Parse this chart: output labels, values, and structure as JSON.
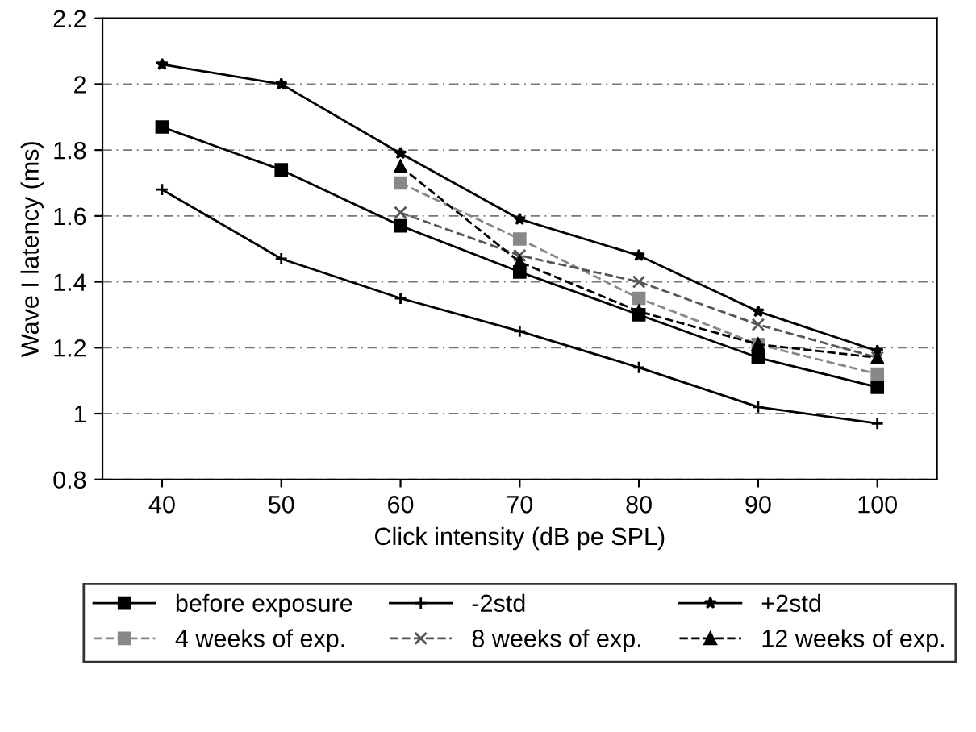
{
  "chart_data": {
    "type": "line",
    "xlabel": "Click intensity (dB pe SPL)",
    "ylabel": "Wave I latency (ms)",
    "x": [
      40,
      50,
      60,
      70,
      80,
      90,
      100
    ],
    "xlim": [
      35,
      105
    ],
    "xticks": [
      40,
      50,
      60,
      70,
      80,
      90,
      100
    ],
    "ylim": [
      0.8,
      2.2
    ],
    "yticks": [
      0.8,
      1,
      1.2,
      1.4,
      1.6,
      1.8,
      2,
      2.2
    ],
    "grid": "y",
    "legend": "bottom",
    "series": [
      {
        "name": "before exposure",
        "color": "#000000",
        "marker": "square",
        "line_style": "solid",
        "values": [
          1.87,
          1.74,
          1.57,
          1.43,
          1.3,
          1.17,
          1.08
        ]
      },
      {
        "name": "-2std",
        "color": "#000000",
        "marker": "plus",
        "line_style": "solid",
        "values": [
          1.68,
          1.47,
          1.35,
          1.25,
          1.14,
          1.02,
          0.97
        ]
      },
      {
        "name": "+2std",
        "color": "#000000",
        "marker": "star",
        "line_style": "solid",
        "values": [
          2.06,
          2.0,
          1.79,
          1.59,
          1.48,
          1.31,
          1.19
        ]
      },
      {
        "name": "4 weeks of exp.",
        "color": "#888888",
        "marker": "square",
        "line_style": "dashed",
        "values": [
          null,
          null,
          1.7,
          1.53,
          1.35,
          1.21,
          1.12
        ]
      },
      {
        "name": "8 weeks of exp.",
        "color": "#555555",
        "marker": "cross",
        "line_style": "dashed",
        "values": [
          null,
          null,
          1.61,
          1.48,
          1.4,
          1.27,
          1.17
        ]
      },
      {
        "name": "12 weeks of exp.",
        "color": "#000000",
        "marker": "triangle",
        "line_style": "dashed",
        "values": [
          null,
          null,
          1.75,
          1.46,
          1.31,
          1.21,
          1.17
        ]
      }
    ]
  }
}
